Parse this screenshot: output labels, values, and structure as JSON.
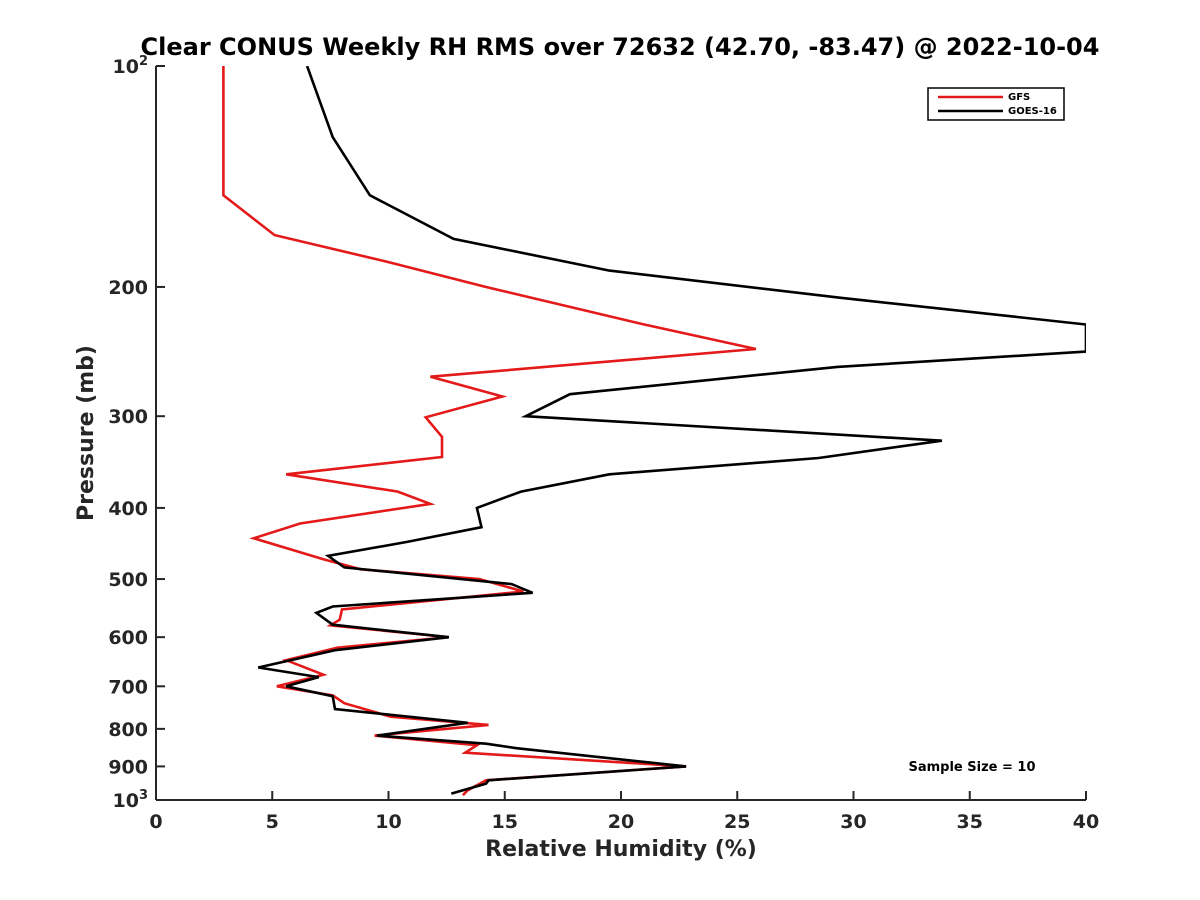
{
  "chart_data": {
    "type": "line",
    "title": "Clear CONUS Weekly RH RMS over 72632 (42.70, -83.47) @ 2022-10-04",
    "xlabel": "Relative Humidity (%)",
    "ylabel": "Pressure (mb)",
    "xlim": [
      0,
      40
    ],
    "ylim": [
      100,
      1000
    ],
    "y_scale": "log",
    "y_reversed": true,
    "grid": false,
    "legend_placement": "top-right",
    "x_ticks": [
      "0",
      "5",
      "10",
      "15",
      "20",
      "25",
      "30",
      "35",
      "40"
    ],
    "y_ticks": [
      {
        "value": 100,
        "base": "10",
        "exp": "2"
      },
      {
        "value": 200,
        "label": "200"
      },
      {
        "value": 300,
        "label": "300"
      },
      {
        "value": 400,
        "label": "400"
      },
      {
        "value": 500,
        "label": "500"
      },
      {
        "value": 600,
        "label": "600"
      },
      {
        "value": 700,
        "label": "700"
      },
      {
        "value": 800,
        "label": "800"
      },
      {
        "value": 900,
        "label": "900"
      },
      {
        "value": 1000,
        "base": "10",
        "exp": "3"
      }
    ],
    "annotation": "Sample Size = 10",
    "series": [
      {
        "name": "GFS",
        "color": "#e41a1a",
        "points": [
          [
            2.9,
            100
          ],
          [
            2.9,
            125
          ],
          [
            2.9,
            150
          ],
          [
            5.1,
            170
          ],
          [
            10.0,
            185
          ],
          [
            14.2,
            200
          ],
          [
            21.0,
            225
          ],
          [
            25.8,
            243
          ],
          [
            11.8,
            265
          ],
          [
            14.9,
            282
          ],
          [
            11.6,
            301
          ],
          [
            12.3,
            320
          ],
          [
            12.3,
            341
          ],
          [
            5.6,
            360
          ],
          [
            10.4,
            380
          ],
          [
            11.8,
            395
          ],
          [
            6.2,
            420
          ],
          [
            4.2,
            440
          ],
          [
            7.2,
            470
          ],
          [
            8.8,
            485
          ],
          [
            13.9,
            500
          ],
          [
            15.8,
            520
          ],
          [
            8.0,
            550
          ],
          [
            7.9,
            568
          ],
          [
            7.5,
            578
          ],
          [
            12.6,
            600
          ],
          [
            7.8,
            620
          ],
          [
            5.6,
            645
          ],
          [
            7.2,
            675
          ],
          [
            5.2,
            700
          ],
          [
            7.6,
            720
          ],
          [
            8.1,
            738
          ],
          [
            10.1,
            770
          ],
          [
            14.3,
            790
          ],
          [
            9.4,
            817
          ],
          [
            13.8,
            842
          ],
          [
            13.3,
            862
          ],
          [
            22.8,
            900
          ],
          [
            14.2,
            940
          ],
          [
            13.4,
            970
          ],
          [
            13.2,
            985
          ]
        ]
      },
      {
        "name": "GOES-16",
        "color": "#000000",
        "points": [
          [
            6.5,
            100
          ],
          [
            7.6,
            125
          ],
          [
            9.2,
            150
          ],
          [
            12.8,
            172
          ],
          [
            19.5,
            190
          ],
          [
            29.5,
            207
          ],
          [
            40.0,
            225
          ],
          [
            40.0,
            245
          ],
          [
            29.3,
            257
          ],
          [
            17.8,
            280
          ],
          [
            15.9,
            300
          ],
          [
            33.8,
            324
          ],
          [
            28.5,
            342
          ],
          [
            19.5,
            360
          ],
          [
            15.7,
            380
          ],
          [
            13.8,
            400
          ],
          [
            14.0,
            425
          ],
          [
            10.8,
            445
          ],
          [
            7.4,
            465
          ],
          [
            8.1,
            482
          ],
          [
            15.3,
            508
          ],
          [
            16.2,
            522
          ],
          [
            7.6,
            545
          ],
          [
            6.9,
            556
          ],
          [
            7.6,
            577
          ],
          [
            12.6,
            600
          ],
          [
            7.7,
            625
          ],
          [
            4.4,
            660
          ],
          [
            7.0,
            680
          ],
          [
            5.6,
            700
          ],
          [
            7.6,
            722
          ],
          [
            7.7,
            752
          ],
          [
            13.4,
            785
          ],
          [
            9.5,
            817
          ],
          [
            14.2,
            838
          ],
          [
            15.5,
            850
          ],
          [
            22.8,
            900
          ],
          [
            14.3,
            940
          ],
          [
            14.2,
            950
          ],
          [
            12.7,
            980
          ]
        ]
      }
    ]
  }
}
